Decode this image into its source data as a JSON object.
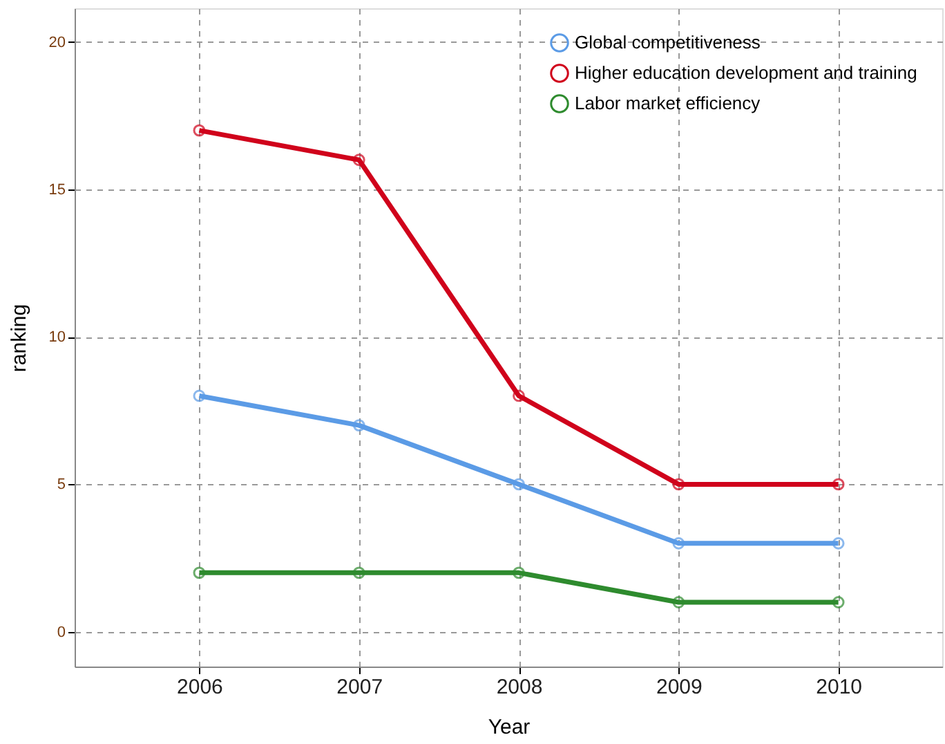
{
  "chart_data": {
    "type": "line",
    "xlabel": "Year",
    "ylabel": "ranking",
    "x": [
      2006,
      2007,
      2008,
      2009,
      2010
    ],
    "series": [
      {
        "name": "Global competitiveness",
        "color": "#5b9be6",
        "values": [
          8,
          7,
          5,
          3,
          3
        ]
      },
      {
        "name": "Higher education development and training",
        "color": "#d0021b",
        "values": [
          17,
          16,
          8,
          5,
          5
        ]
      },
      {
        "name": "Labor market efficiency",
        "color": "#2e8b2e",
        "values": [
          2,
          2,
          2,
          1,
          1
        ]
      }
    ],
    "xlim": [
      2005.22,
      2010.65
    ],
    "xticks": [
      2006,
      2007,
      2008,
      2009,
      2010
    ],
    "ylim": [
      -1.18,
      21.14
    ],
    "yticks": [
      0,
      5,
      10,
      15,
      20
    ],
    "grid": true,
    "legend": "top right",
    "marker": "circle",
    "line_style": "solid"
  }
}
